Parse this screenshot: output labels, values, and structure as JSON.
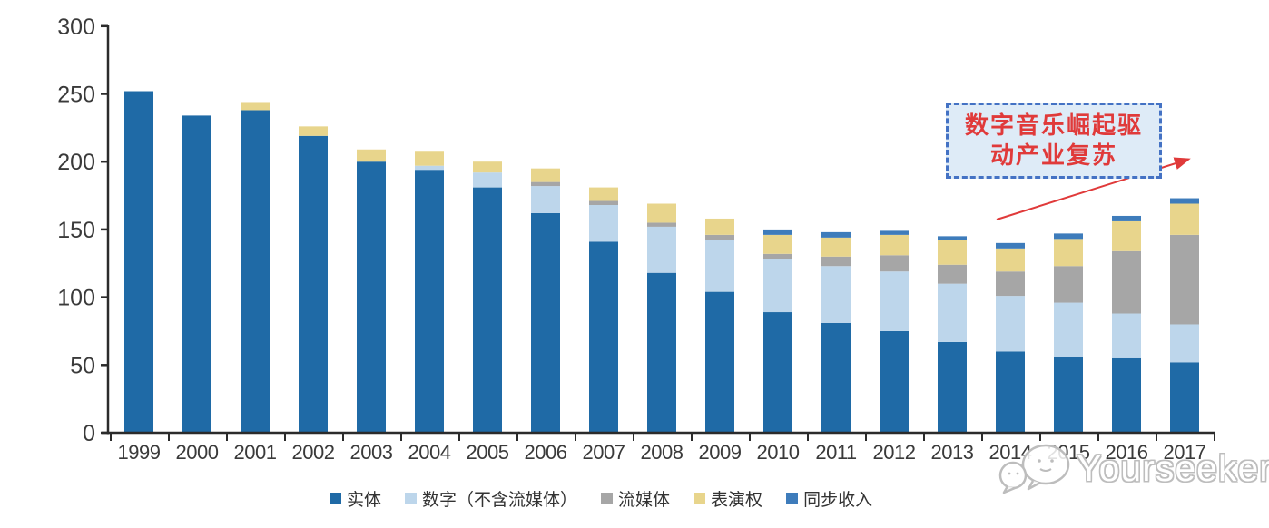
{
  "chart_data": {
    "type": "bar",
    "stacked": true,
    "title": "",
    "xlabel": "",
    "ylabel": "",
    "ylim": [
      0,
      300
    ],
    "yticks": [
      0,
      50,
      100,
      150,
      200,
      250,
      300
    ],
    "grid": false,
    "legend_position": "bottom",
    "categories": [
      "1999",
      "2000",
      "2001",
      "2002",
      "2003",
      "2004",
      "2005",
      "2006",
      "2007",
      "2008",
      "2009",
      "2010",
      "2011",
      "2012",
      "2013",
      "2014",
      "2015",
      "2016",
      "2017"
    ],
    "series": [
      {
        "key": "physical",
        "name": "实体",
        "color": "#1F6AA6",
        "values": [
          252,
          234,
          238,
          219,
          200,
          194,
          181,
          162,
          141,
          118,
          104,
          89,
          81,
          75,
          67,
          60,
          56,
          55,
          52
        ]
      },
      {
        "key": "digital-excl-streaming",
        "name": "数字（不含流媒体）",
        "color": "#BDD6EB",
        "values": [
          0,
          0,
          0,
          0,
          0,
          3,
          11,
          20,
          27,
          34,
          38,
          39,
          42,
          44,
          43,
          41,
          40,
          33,
          28
        ]
      },
      {
        "key": "streaming",
        "name": "流媒体",
        "color": "#A6A6A6",
        "values": [
          0,
          0,
          0,
          0,
          0,
          0,
          0,
          3,
          3,
          3,
          4,
          4,
          7,
          12,
          14,
          18,
          27,
          46,
          66
        ]
      },
      {
        "key": "performance-rights",
        "name": "表演权",
        "color": "#E8D58C",
        "values": [
          0,
          0,
          6,
          7,
          9,
          11,
          8,
          10,
          10,
          14,
          12,
          14,
          14,
          15,
          18,
          17,
          20,
          22,
          23
        ]
      },
      {
        "key": "sync",
        "name": "同步收入",
        "color": "#3E7CBB",
        "values": [
          0,
          0,
          0,
          0,
          0,
          0,
          0,
          0,
          0,
          0,
          0,
          4,
          4,
          3,
          3,
          4,
          4,
          4,
          4
        ]
      }
    ]
  },
  "annotation": {
    "line1": "数字音乐崛起驱",
    "line2": "动产业复苏",
    "text_color": "#E03A3A",
    "box_fill": "#DEEBF7",
    "box_border_color": "#4472C4",
    "arrow_color": "#E03A3A"
  },
  "watermark": {
    "text": "Yourseeker",
    "color": "#BDBDBD"
  },
  "colors": {
    "axis": "#2B2B2B",
    "tick_label": "#3A3A3A",
    "background": "#FFFFFF"
  }
}
